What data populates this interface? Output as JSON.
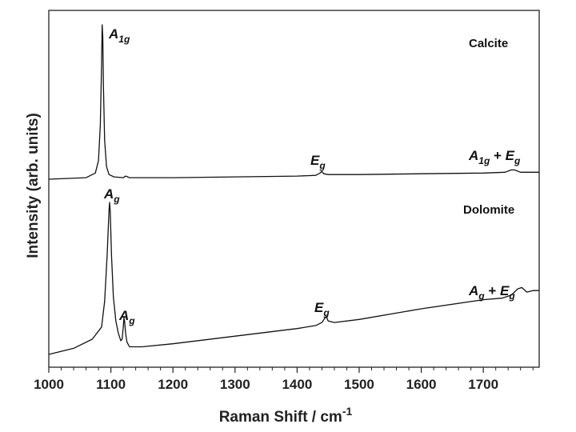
{
  "chart_data": {
    "type": "line",
    "xlabel_main": "Raman Shift / cm",
    "xlabel_sup": "-1",
    "ylabel": "Intensity (arb. units)",
    "xlim": [
      1000,
      1790
    ],
    "x_ticks": [
      1000,
      1100,
      1200,
      1300,
      1400,
      1500,
      1600,
      1700
    ],
    "y_ticks_shown": false,
    "grid": false,
    "series": [
      {
        "name": "Calcite",
        "x": [
          1000,
          1060,
          1075,
          1080,
          1083,
          1085,
          1086,
          1087,
          1088,
          1090,
          1093,
          1097,
          1105,
          1120,
          1124,
          1130,
          1200,
          1300,
          1400,
          1430,
          1437,
          1440,
          1443,
          1450,
          1500,
          1600,
          1700,
          1735,
          1745,
          1750,
          1760,
          1790
        ],
        "y": [
          0.0,
          0.01,
          0.04,
          0.12,
          0.35,
          0.75,
          1.0,
          0.92,
          0.6,
          0.25,
          0.08,
          0.03,
          0.015,
          0.01,
          0.02,
          0.01,
          0.01,
          0.015,
          0.02,
          0.025,
          0.04,
          0.05,
          0.035,
          0.03,
          0.03,
          0.035,
          0.04,
          0.045,
          0.06,
          0.06,
          0.045,
          0.045
        ]
      },
      {
        "name": "Dolomite",
        "x": [
          1000,
          1040,
          1070,
          1085,
          1090,
          1094,
          1097,
          1098,
          1099,
          1101,
          1104,
          1108,
          1112,
          1116,
          1118,
          1120,
          1121,
          1122,
          1124,
          1126,
          1130,
          1150,
          1200,
          1300,
          1400,
          1430,
          1440,
          1445,
          1447,
          1450,
          1460,
          1500,
          1600,
          1700,
          1730,
          1745,
          1750,
          1755,
          1762,
          1770,
          1780,
          1790
        ],
        "y": [
          0.0,
          0.04,
          0.1,
          0.18,
          0.35,
          0.65,
          0.95,
          1.0,
          0.94,
          0.65,
          0.38,
          0.22,
          0.14,
          0.09,
          0.1,
          0.18,
          0.24,
          0.22,
          0.13,
          0.08,
          0.05,
          0.05,
          0.07,
          0.12,
          0.17,
          0.19,
          0.21,
          0.24,
          0.25,
          0.22,
          0.21,
          0.23,
          0.3,
          0.36,
          0.37,
          0.39,
          0.41,
          0.43,
          0.44,
          0.41,
          0.42,
          0.42
        ]
      }
    ],
    "annotations": [
      {
        "id": "calcite-a1g",
        "main": "A",
        "sub": "1g",
        "tail": ""
      },
      {
        "id": "calcite-eg",
        "main": "E",
        "sub": "g",
        "tail": ""
      },
      {
        "id": "calcite-a1g-eg",
        "main": "A",
        "sub": "1g",
        "tail": " + E",
        "sub2": "g"
      },
      {
        "id": "dolomite-ag-main",
        "main": "A",
        "sub": "g",
        "tail": ""
      },
      {
        "id": "dolomite-ag-side",
        "main": "A",
        "sub": "g",
        "tail": ""
      },
      {
        "id": "dolomite-eg",
        "main": "E",
        "sub": "g",
        "tail": ""
      },
      {
        "id": "dolomite-ag-eg",
        "main": "A",
        "sub": "g",
        "tail": " + E",
        "sub2": "g"
      }
    ],
    "sample_labels": [
      "Calcite",
      "Dolomite"
    ]
  }
}
